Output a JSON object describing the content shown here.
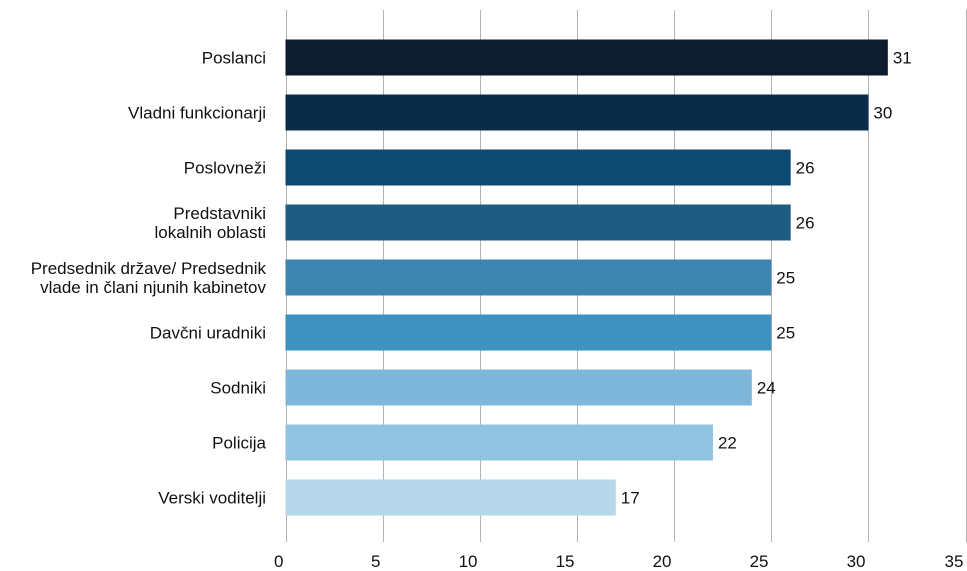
{
  "chart_data": {
    "type": "bar",
    "orientation": "horizontal",
    "categories": [
      [
        "Poslanci"
      ],
      [
        "Vladni funkcionarji"
      ],
      [
        "Poslovneži"
      ],
      [
        "Predstavniki",
        "lokalnih oblasti"
      ],
      [
        "Predsednik države/ Predsednik",
        "vlade in člani njunih kabinetov"
      ],
      [
        "Davčni uradniki"
      ],
      [
        "Sodniki"
      ],
      [
        "Policija"
      ],
      [
        "Verski voditelji"
      ]
    ],
    "values": [
      31,
      30,
      26,
      26,
      25,
      25,
      24,
      22,
      17
    ],
    "data_labels": [
      "31",
      "30",
      "26",
      "26",
      "25",
      "25",
      "24",
      "22",
      "17"
    ],
    "bar_colors": [
      "#0d1c2e",
      "#0b2c48",
      "#0d4a72",
      "#1f5c82",
      "#3d84b0",
      "#3d92c0",
      "#7fb7db",
      "#92c4e2",
      "#b6d6ea"
    ],
    "xlim": [
      0,
      35
    ],
    "x_ticks": [
      0,
      5,
      10,
      15,
      20,
      25,
      30,
      35
    ],
    "x_tick_labels": [
      "0",
      "5",
      "10",
      "15",
      "20",
      "25",
      "30",
      "35"
    ],
    "grid": "vertical",
    "legend": "none"
  }
}
